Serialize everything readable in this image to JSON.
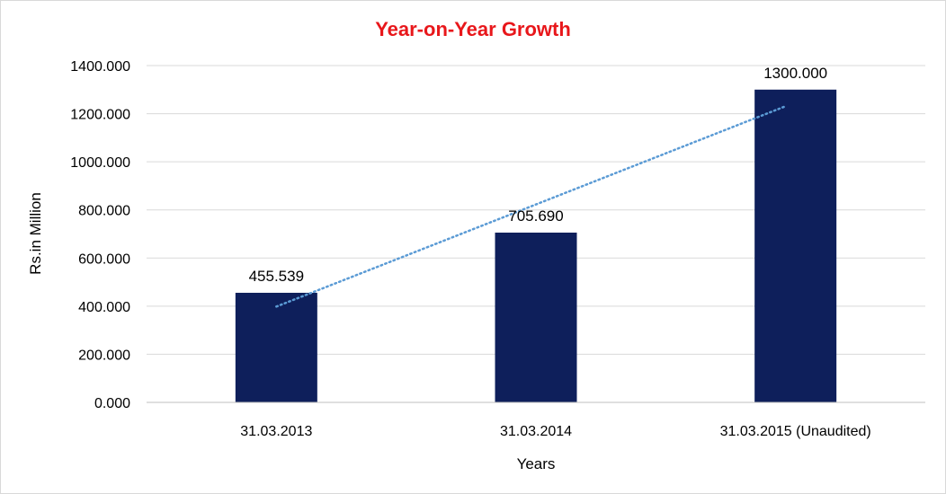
{
  "colors": {
    "title": "#e8171b",
    "bar": "#0e1f5b",
    "trendline": "#5b9bd5",
    "gridline": "#d9d9d9",
    "axis": "#bfbfbf"
  },
  "chart_data": {
    "type": "bar",
    "title": "Year-on-Year Growth",
    "xlabel": "Years",
    "ylabel": "Rs.in Million",
    "categories": [
      "31.03.2013",
      "31.03.2014",
      "31.03.2015 (Unaudited)"
    ],
    "values": [
      455.539,
      705.69,
      1300.0
    ],
    "data_labels": [
      "455.539",
      "705.690",
      "1300.000"
    ],
    "ylim": [
      0,
      1400
    ],
    "yticks": [
      0,
      200,
      400,
      600,
      800,
      1000,
      1200,
      1400
    ],
    "ytick_labels": [
      "0.000",
      "200.000",
      "400.000",
      "600.000",
      "800.000",
      "1000.000",
      "1200.000",
      "1400.000"
    ],
    "grid": true,
    "legend": "none",
    "trendline": "linear, dotted"
  }
}
